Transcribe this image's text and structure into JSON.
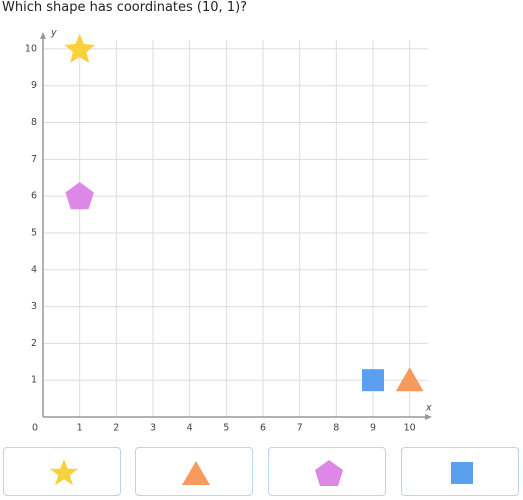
{
  "question": "Which shape has coordinates (10, 1)?",
  "chart_data": {
    "type": "scatter",
    "xlabel": "x",
    "ylabel": "y",
    "xlim": [
      0,
      10.5
    ],
    "ylim": [
      0,
      10.35
    ],
    "xticks": [
      0,
      1,
      2,
      3,
      4,
      5,
      6,
      7,
      8,
      9,
      10
    ],
    "yticks": [
      1,
      2,
      3,
      4,
      5,
      6,
      7,
      8,
      9,
      10
    ],
    "grid": true,
    "series": [
      {
        "marker": "star",
        "color": "#f7d23c",
        "x": [
          1
        ],
        "values": [
          10
        ]
      },
      {
        "marker": "pentagon",
        "color": "#dd88e6",
        "x": [
          1
        ],
        "values": [
          6
        ]
      },
      {
        "marker": "square",
        "color": "#5b9ff0",
        "x": [
          9
        ],
        "values": [
          1
        ]
      },
      {
        "marker": "triangle",
        "color": "#f79a5c",
        "x": [
          10
        ],
        "values": [
          1
        ]
      }
    ]
  }
}
